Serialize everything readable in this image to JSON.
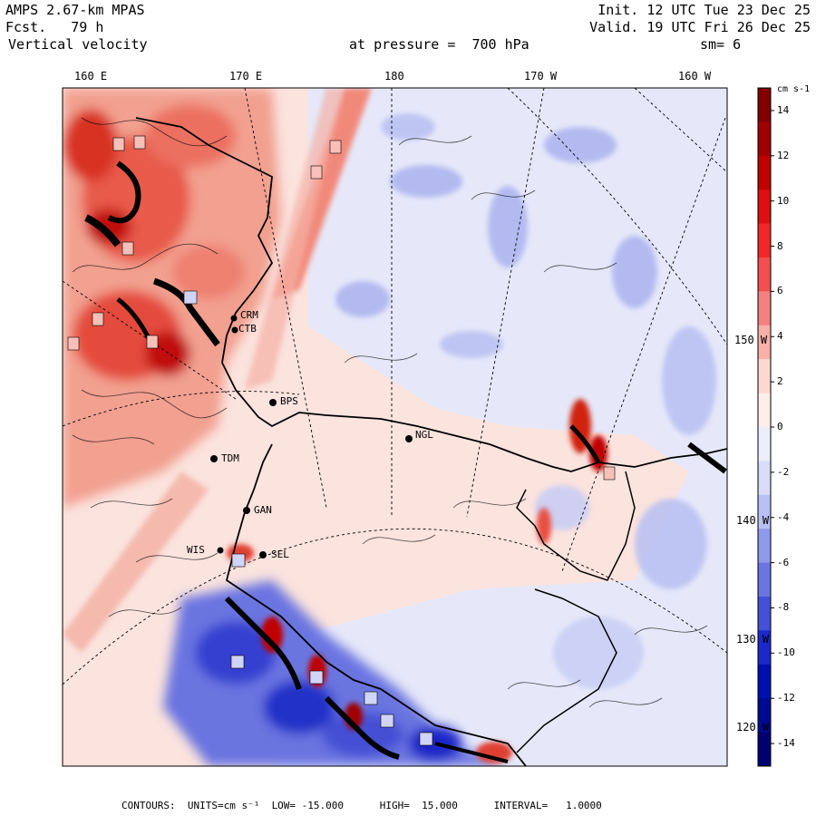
{
  "header": {
    "model": "AMPS 2.67-km MPAS",
    "forecast": "Fcst.   79 h",
    "variable": "Vertical velocity",
    "init": "Init. 12 UTC Tue 23 Dec 25",
    "valid": "Valid. 19 UTC Fri 26 Dec 25",
    "pressure": "at pressure =  700 hPa",
    "smoothing": "sm= 6"
  },
  "longitude_labels": [
    "160 E",
    "170 E",
    "180",
    "170 W",
    "160 W"
  ],
  "latitude_labels": [
    "150 W",
    "140 W",
    "130 W",
    "120 W"
  ],
  "stations": [
    "CRM",
    "CTB",
    "BPS",
    "NGL",
    "TDM",
    "GAN",
    "SEL",
    "WIS"
  ],
  "colorbar": {
    "units": "cm s-1",
    "ticks": [
      "14",
      "12",
      "10",
      "8",
      "6",
      "4",
      "2",
      "0",
      "-2",
      "-4",
      "-6",
      "-8",
      "-10",
      "-12",
      "-14"
    ],
    "colors": [
      "#800000",
      "#a00000",
      "#c00000",
      "#dd1010",
      "#f02828",
      "#f25050",
      "#f58080",
      "#f8b0a8",
      "#fbd8d0",
      "#fdeeea",
      "#eceefb",
      "#d8dcf8",
      "#b8bff2",
      "#8f99ea",
      "#6a75e0",
      "#4450d5",
      "#1c28c8",
      "#0010b0",
      "#000a90",
      "#000070"
    ]
  },
  "footer": {
    "text": "CONTOURS:  UNITS=cm s⁻¹  LOW= -15.000      HIGH=  15.000      INTERVAL=   1.0000"
  }
}
